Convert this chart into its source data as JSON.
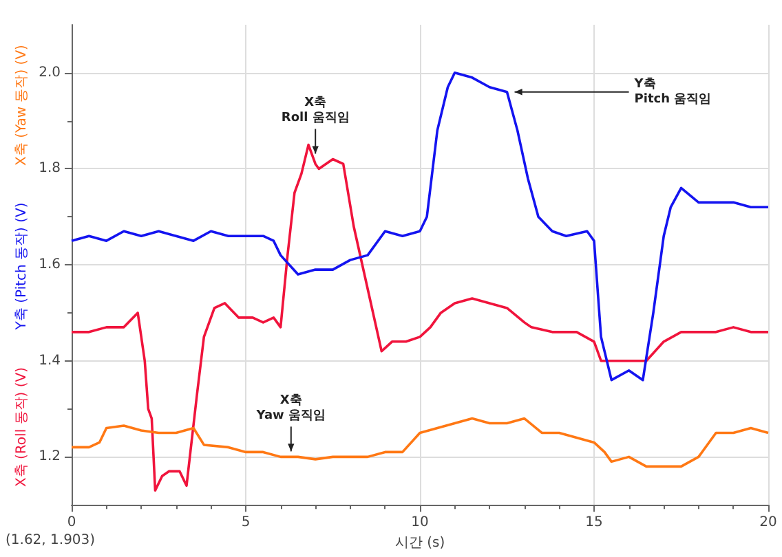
{
  "chart_data": {
    "type": "line",
    "xlabel": "시간 (s)",
    "xlim": [
      0,
      20
    ],
    "xticks": [
      0,
      5,
      10,
      15,
      20
    ],
    "ylim": [
      1.1,
      2.1
    ],
    "yticks": [
      1.2,
      1.4,
      1.6,
      1.8,
      {
        "value": 2,
        "label": "2.0"
      }
    ],
    "grid": true,
    "legend": false,
    "marker": "none",
    "line_style": "solid",
    "series": [
      {
        "name": "X축 (Roll 동작) (V)",
        "color": "#f0143c",
        "x": [
          0,
          0.5,
          1,
          1.5,
          1.9,
          2.1,
          2.2,
          2.3,
          2.4,
          2.6,
          2.8,
          3.0,
          3.1,
          3.3,
          3.6,
          3.8,
          4.1,
          4.4,
          4.8,
          5.2,
          5.5,
          5.8,
          6.0,
          6.2,
          6.4,
          6.6,
          6.8,
          7.0,
          7.1,
          7.3,
          7.5,
          7.8,
          8.1,
          8.5,
          8.9,
          9.2,
          9.6,
          10,
          10.3,
          10.6,
          11,
          11.5,
          12,
          12.5,
          13,
          13.2,
          13.8,
          14.5,
          15,
          15.2,
          15.6,
          16,
          16.5,
          17,
          17.5,
          18,
          18.5,
          19,
          19.5,
          20
        ],
        "values": [
          1.46,
          1.46,
          1.47,
          1.47,
          1.5,
          1.4,
          1.3,
          1.28,
          1.13,
          1.16,
          1.17,
          1.17,
          1.17,
          1.14,
          1.33,
          1.45,
          1.51,
          1.52,
          1.49,
          1.49,
          1.48,
          1.49,
          1.47,
          1.62,
          1.75,
          1.79,
          1.85,
          1.81,
          1.8,
          1.81,
          1.82,
          1.81,
          1.68,
          1.55,
          1.42,
          1.44,
          1.44,
          1.45,
          1.47,
          1.5,
          1.52,
          1.53,
          1.52,
          1.51,
          1.48,
          1.47,
          1.46,
          1.46,
          1.44,
          1.4,
          1.4,
          1.4,
          1.4,
          1.44,
          1.46,
          1.46,
          1.46,
          1.47,
          1.46,
          1.46
        ]
      },
      {
        "name": "Y축 (Pitch 동작) (V)",
        "color": "#1414f0",
        "x": [
          0,
          0.5,
          1,
          1.5,
          2,
          2.5,
          3,
          3.5,
          4,
          4.5,
          5,
          5.5,
          5.8,
          6,
          6.5,
          7,
          7.5,
          8,
          8.5,
          9,
          9.5,
          10,
          10.2,
          10.5,
          10.8,
          11,
          11.5,
          12,
          12.5,
          12.8,
          13.1,
          13.4,
          13.8,
          14.2,
          14.8,
          15,
          15.2,
          15.5,
          16,
          16.4,
          16.7,
          17,
          17.2,
          17.5,
          18,
          18.5,
          19,
          19.5,
          20
        ],
        "values": [
          1.65,
          1.66,
          1.65,
          1.67,
          1.66,
          1.67,
          1.66,
          1.65,
          1.67,
          1.66,
          1.66,
          1.66,
          1.65,
          1.62,
          1.58,
          1.59,
          1.59,
          1.61,
          1.62,
          1.67,
          1.66,
          1.67,
          1.7,
          1.88,
          1.97,
          2.0,
          1.99,
          1.97,
          1.96,
          1.88,
          1.78,
          1.7,
          1.67,
          1.66,
          1.67,
          1.65,
          1.45,
          1.36,
          1.38,
          1.36,
          1.5,
          1.66,
          1.72,
          1.76,
          1.73,
          1.73,
          1.73,
          1.72,
          1.72
        ]
      },
      {
        "name": "X축 (Yaw 동작) (V)",
        "color": "#ff7814",
        "x": [
          0,
          0.5,
          0.8,
          1,
          1.5,
          2,
          2.5,
          3,
          3.5,
          3.8,
          4.5,
          5,
          5.5,
          6,
          6.5,
          7,
          7.5,
          8,
          8.5,
          9,
          9.5,
          10,
          10.5,
          11,
          11.5,
          12,
          12.5,
          13,
          13.5,
          14,
          14.5,
          15,
          15.3,
          15.5,
          16,
          16.5,
          17,
          17.5,
          18,
          18.5,
          19,
          19.5,
          20
        ],
        "values": [
          1.22,
          1.22,
          1.23,
          1.26,
          1.265,
          1.255,
          1.25,
          1.25,
          1.26,
          1.225,
          1.22,
          1.21,
          1.21,
          1.2,
          1.2,
          1.195,
          1.2,
          1.2,
          1.2,
          1.21,
          1.21,
          1.25,
          1.26,
          1.27,
          1.28,
          1.27,
          1.27,
          1.28,
          1.25,
          1.25,
          1.24,
          1.23,
          1.21,
          1.19,
          1.2,
          1.18,
          1.18,
          1.18,
          1.2,
          1.25,
          1.25,
          1.26,
          1.25
        ]
      }
    ],
    "annotations": [
      {
        "text": "X축\nRoll 움직임",
        "x": 7,
        "y": 1.82
      },
      {
        "text": "Y축\nPitch 움직임",
        "x": 12.6,
        "y": 1.96
      },
      {
        "text": "X축\nYaw 움직임",
        "x": 6.3,
        "y": 1.2
      },
      "(1.62, 1.903)"
    ]
  }
}
